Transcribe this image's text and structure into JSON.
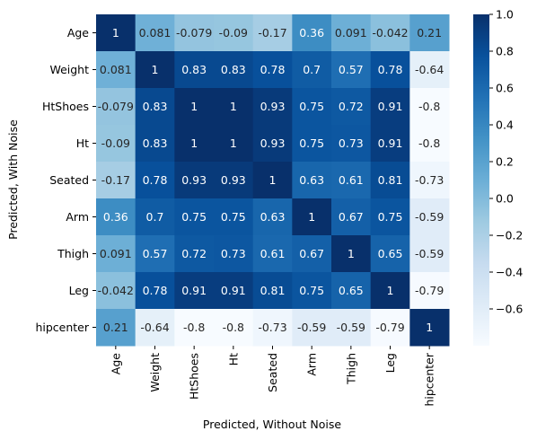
{
  "chart_data": {
    "type": "heatmap",
    "title": "",
    "xlabel": "Predicted, Without Noise",
    "ylabel": "Predicted, With Noise",
    "x_categories": [
      "Age",
      "Weight",
      "HtShoes",
      "Ht",
      "Seated",
      "Arm",
      "Thigh",
      "Leg",
      "hipcenter"
    ],
    "y_categories": [
      "Age",
      "Weight",
      "HtShoes",
      "Ht",
      "Seated",
      "Arm",
      "Thigh",
      "Leg",
      "hipcenter"
    ],
    "values": [
      [
        1,
        0.081,
        -0.079,
        -0.09,
        -0.17,
        0.36,
        0.091,
        -0.042,
        0.21
      ],
      [
        0.081,
        1,
        0.83,
        0.83,
        0.78,
        0.7,
        0.57,
        0.78,
        -0.64
      ],
      [
        -0.079,
        0.83,
        1,
        1,
        0.93,
        0.75,
        0.72,
        0.91,
        -0.8
      ],
      [
        -0.09,
        0.83,
        1,
        1,
        0.93,
        0.75,
        0.73,
        0.91,
        -0.8
      ],
      [
        -0.17,
        0.78,
        0.93,
        0.93,
        1,
        0.63,
        0.61,
        0.81,
        -0.73
      ],
      [
        0.36,
        0.7,
        0.75,
        0.75,
        0.63,
        1,
        0.67,
        0.75,
        -0.59
      ],
      [
        0.091,
        0.57,
        0.72,
        0.73,
        0.61,
        0.67,
        1,
        0.65,
        -0.59
      ],
      [
        -0.042,
        0.78,
        0.91,
        0.91,
        0.81,
        0.75,
        0.65,
        1,
        -0.79
      ],
      [
        0.21,
        -0.64,
        -0.8,
        -0.8,
        -0.73,
        -0.59,
        -0.59,
        -0.79,
        1
      ]
    ],
    "value_labels": [
      [
        "1",
        "0.081",
        "-0.079",
        "-0.09",
        "-0.17",
        "0.36",
        "0.091",
        "-0.042",
        "0.21"
      ],
      [
        "0.081",
        "1",
        "0.83",
        "0.83",
        "0.78",
        "0.7",
        "0.57",
        "0.78",
        "-0.64"
      ],
      [
        "-0.079",
        "0.83",
        "1",
        "1",
        "0.93",
        "0.75",
        "0.72",
        "0.91",
        "-0.8"
      ],
      [
        "-0.09",
        "0.83",
        "1",
        "1",
        "0.93",
        "0.75",
        "0.73",
        "0.91",
        "-0.8"
      ],
      [
        "-0.17",
        "0.78",
        "0.93",
        "0.93",
        "1",
        "0.63",
        "0.61",
        "0.81",
        "-0.73"
      ],
      [
        "0.36",
        "0.7",
        "0.75",
        "0.75",
        "0.63",
        "1",
        "0.67",
        "0.75",
        "-0.59"
      ],
      [
        "0.091",
        "0.57",
        "0.72",
        "0.73",
        "0.61",
        "0.67",
        "1",
        "0.65",
        "-0.59"
      ],
      [
        "-0.042",
        "0.78",
        "0.91",
        "0.91",
        "0.81",
        "0.75",
        "0.65",
        "1",
        "-0.79"
      ],
      [
        "0.21",
        "-0.64",
        "-0.8",
        "-0.8",
        "-0.73",
        "-0.59",
        "-0.59",
        "-0.79",
        "1"
      ]
    ],
    "colorscale": "Blues",
    "vmin": -0.8,
    "vmax": 1.0,
    "colorbar_ticks": [
      "1.0",
      "0.8",
      "0.6",
      "0.4",
      "0.2",
      "0.0",
      "−0.2",
      "−0.4",
      "−0.6"
    ],
    "colorbar_tick_values": [
      1.0,
      0.8,
      0.6,
      0.4,
      0.2,
      0.0,
      -0.2,
      -0.4,
      -0.6
    ],
    "grid": false,
    "legend": "colorbar-right"
  }
}
